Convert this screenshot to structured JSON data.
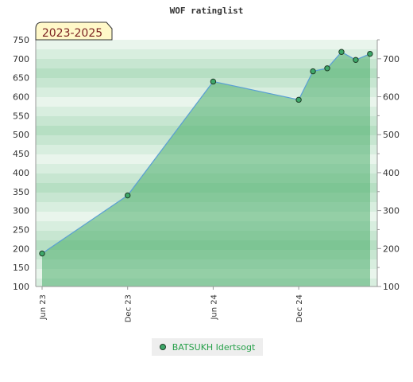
{
  "chart_data": {
    "type": "area",
    "title": "WOF ratinglist",
    "period_label": "2023-2025",
    "xlabel": "",
    "ylabel": "",
    "x_ticks": [
      "Jun 23",
      "Dec 23",
      "Jun 24",
      "Dec 24"
    ],
    "ylim": [
      100,
      750
    ],
    "y_ticks_left": [
      100,
      150,
      200,
      250,
      300,
      350,
      400,
      450,
      500,
      550,
      600,
      650,
      700,
      750
    ],
    "y_ticks_right": [
      100,
      200,
      300,
      400,
      500,
      600,
      700
    ],
    "series": [
      {
        "name": "BATSUKH Idertsogt",
        "x": [
          "2023-06",
          "2023-12",
          "2024-06",
          "2024-12",
          "2025-01",
          "2025-02",
          "2025-03",
          "2025-04",
          "2025-05"
        ],
        "values": [
          187,
          340,
          640,
          592,
          667,
          675,
          718,
          697,
          713
        ]
      }
    ],
    "legend_position": "bottom-center",
    "colors": {
      "area_fill": "#4fae6e",
      "line": "#5a9fd4",
      "marker_fill": "#3ea86a",
      "marker_stroke": "#1d3d26",
      "legend_text": "#27a04a",
      "period_badge_bg": "#fff8c8",
      "period_badge_text": "#7a1f1f"
    }
  }
}
